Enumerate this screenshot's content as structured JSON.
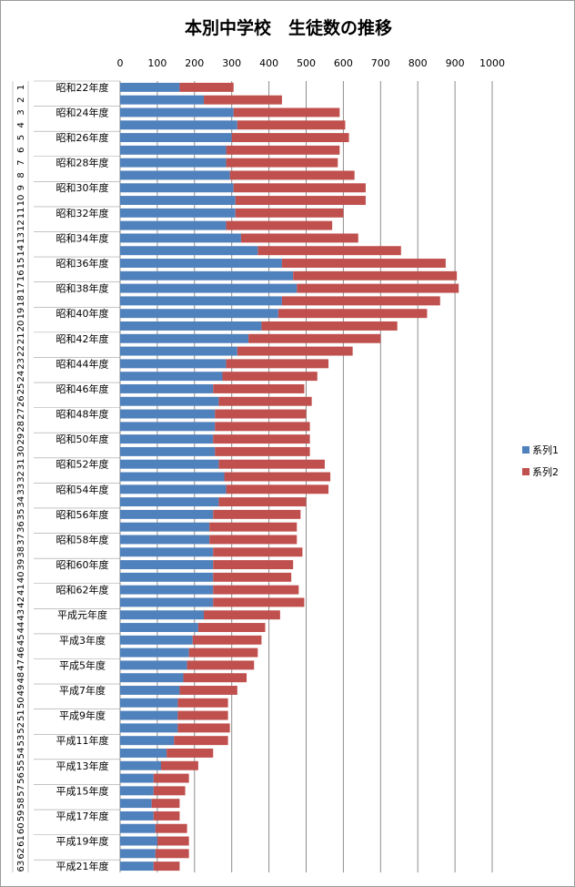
{
  "chart_data": {
    "type": "bar",
    "orientation": "horizontal",
    "stacked": true,
    "title": "本別中学校　生徒数の推移",
    "xlabel": "",
    "ylabel": "",
    "xlim": [
      0,
      1000
    ],
    "x_ticks": [
      0,
      100,
      200,
      300,
      400,
      500,
      600,
      700,
      800,
      900,
      1000
    ],
    "grid": "vertical major gridlines",
    "legend_position": "right",
    "category_labels": [
      "昭和22年度",
      "昭和24年度",
      "昭和26年度",
      "昭和28年度",
      "昭和30年度",
      "昭和32年度",
      "昭和34年度",
      "昭和36年度",
      "昭和38年度",
      "昭和40年度",
      "昭和42年度",
      "昭和44年度",
      "昭和46年度",
      "昭和48年度",
      "昭和50年度",
      "昭和52年度",
      "昭和54年度",
      "昭和56年度",
      "昭和58年度",
      "昭和60年度",
      "昭和62年度",
      "平成元年度",
      "平成3年度",
      "平成5年度",
      "平成7年度",
      "平成9年度",
      "平成11年度",
      "平成13年度",
      "平成15年度",
      "平成17年度",
      "平成19年度",
      "平成21年度"
    ],
    "row_numbers": [
      "1",
      "2",
      "3",
      "4",
      "5",
      "6",
      "7",
      "8",
      "9",
      "10",
      "11",
      "12",
      "13",
      "14",
      "15",
      "16",
      "17",
      "18",
      "19",
      "20",
      "21",
      "22",
      "23",
      "24",
      "25",
      "26",
      "27",
      "28",
      "29",
      "30",
      "31",
      "32",
      "33",
      "34",
      "35",
      "36",
      "37",
      "38",
      "39",
      "40",
      "41",
      "42",
      "43",
      "44",
      "45",
      "46",
      "47",
      "48",
      "49",
      "50",
      "51",
      "52",
      "53",
      "54",
      "55",
      "56",
      "57",
      "58",
      "59",
      "60",
      "61",
      "62",
      "63"
    ],
    "series": [
      {
        "name": "系列1",
        "color": "#4f81bd",
        "values": [
          160,
          225,
          305,
          315,
          300,
          285,
          285,
          295,
          305,
          310,
          310,
          285,
          325,
          370,
          435,
          465,
          475,
          435,
          425,
          380,
          345,
          315,
          285,
          275,
          250,
          265,
          255,
          255,
          250,
          255,
          265,
          280,
          285,
          265,
          250,
          240,
          240,
          250,
          250,
          250,
          250,
          250,
          225,
          210,
          195,
          185,
          180,
          170,
          160,
          155,
          155,
          155,
          145,
          125,
          110,
          90,
          90,
          85,
          90,
          95,
          100,
          95,
          90
        ]
      },
      {
        "name": "系列2",
        "color": "#c0504d",
        "values": [
          145,
          210,
          285,
          290,
          315,
          305,
          300,
          335,
          355,
          350,
          290,
          285,
          315,
          385,
          440,
          440,
          435,
          425,
          400,
          365,
          355,
          310,
          275,
          255,
          245,
          250,
          245,
          255,
          260,
          255,
          285,
          285,
          275,
          235,
          235,
          235,
          235,
          240,
          215,
          210,
          230,
          245,
          205,
          180,
          185,
          185,
          180,
          170,
          155,
          135,
          135,
          140,
          145,
          125,
          100,
          95,
          85,
          75,
          70,
          85,
          85,
          90,
          70
        ]
      }
    ]
  }
}
